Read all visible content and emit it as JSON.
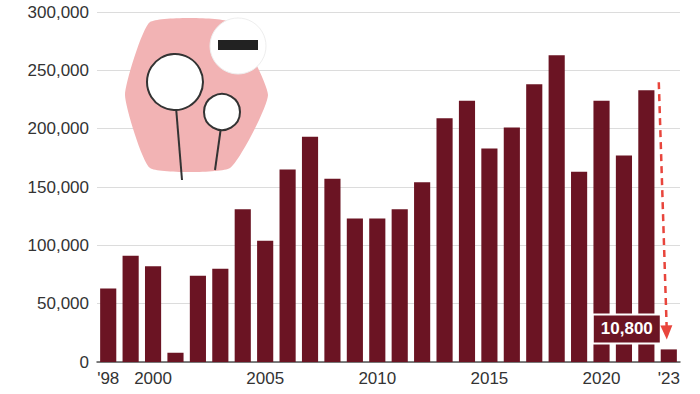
{
  "chart_data": {
    "type": "bar",
    "categories": [
      "'98",
      null,
      "2000",
      null,
      null,
      null,
      null,
      "2005",
      null,
      null,
      null,
      null,
      "2010",
      null,
      null,
      null,
      null,
      "2015",
      null,
      null,
      null,
      null,
      "2020",
      null,
      null,
      "'23"
    ],
    "values": [
      63000,
      91000,
      82000,
      8000,
      74000,
      80000,
      131000,
      104000,
      165000,
      193000,
      157000,
      123000,
      123000,
      131000,
      154000,
      209000,
      224000,
      183000,
      201000,
      238000,
      263000,
      163000,
      224000,
      177000,
      233000,
      10800
    ],
    "value_labels": [
      null,
      null,
      null,
      null,
      null,
      null,
      null,
      null,
      null,
      null,
      null,
      null,
      null,
      null,
      null,
      null,
      null,
      null,
      null,
      null,
      null,
      null,
      null,
      null,
      null,
      "10,800"
    ],
    "color": "#6b1423",
    "ylim": [
      0,
      300000
    ],
    "yticks": [
      0,
      {
        "value": 50000,
        "label": "50,000"
      },
      {
        "value": 100000,
        "label": "100,000"
      },
      {
        "value": 150000,
        "label": "150,000"
      },
      {
        "value": 200000,
        "label": "200,000"
      },
      {
        "value": 250000,
        "label": "250,000"
      },
      {
        "value": 300000,
        "label": "300,000"
      }
    ],
    "grid": true
  }
}
